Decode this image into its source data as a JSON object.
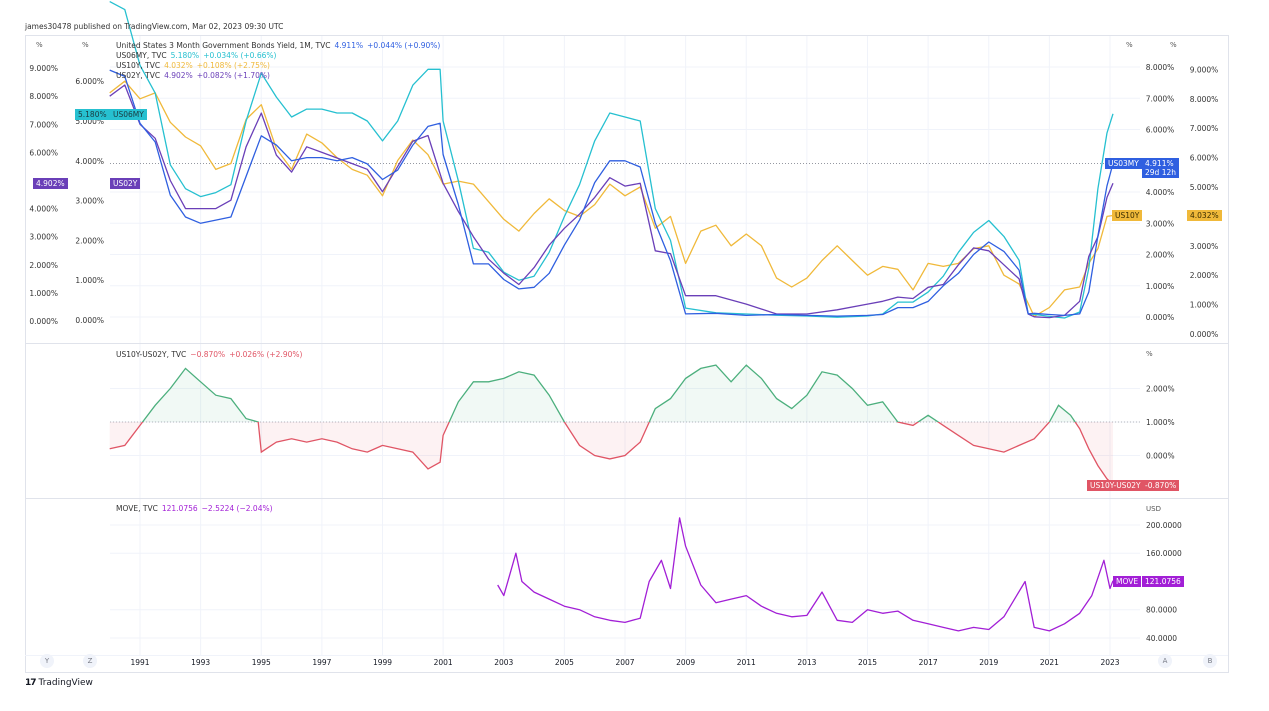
{
  "published": "james30478 published on TradingView.com, Mar 02, 2023 09:30 UTC",
  "brand": "TradingView",
  "colors": {
    "us03my": "#2f5fe0",
    "us06my": "#26c0d0",
    "us10y": "#f0b93a",
    "us02y": "#6a3fb8",
    "spread_up": "#4caf7d",
    "spread_down": "#e05565",
    "move": "#a21fd6",
    "grid": "#f0f3fa"
  },
  "legend": {
    "us03my": {
      "name": "United States 3 Month Government Bonds Yield, 1M, TVC",
      "value": "4.911%",
      "change": "+0.044% (+0.90%)"
    },
    "us06my": {
      "name": "US06MY, TVC",
      "value": "5.180%",
      "change": "+0.034% (+0.66%)"
    },
    "us10y": {
      "name": "US10Y, TVC",
      "value": "4.032%",
      "change": "+0.108% (+2.75%)"
    },
    "us02y": {
      "name": "US02Y, TVC",
      "value": "4.902%",
      "change": "+0.082% (+1.70%)"
    },
    "spread": {
      "name": "US10Y-US02Y, TVC",
      "value": "−0.870%",
      "change": "+0.026% (+2.90%)"
    },
    "move": {
      "name": "MOVE, TVC",
      "value": "121.0756",
      "change": "−2.5224 (−2.04%)"
    }
  },
  "badges": {
    "us06my_value": "5.180%",
    "us06my_name": "US06MY",
    "us02y_value": "4.902%",
    "us02y_name": "US02Y",
    "us03my_name": "US03MY",
    "us03my_value": "4.911%",
    "us03my_countdown": "29d 12h",
    "us10y_name": "US10Y",
    "us10y_value": "4.032%",
    "spread_name": "US10Y-US02Y",
    "spread_value": "-0.870%",
    "move_name": "MOVE",
    "move_value": "121.0756"
  },
  "scale_buttons": {
    "left1": "Y",
    "left2": "Z",
    "right1": "A",
    "right2": "B"
  },
  "chart_data": [
    {
      "type": "line",
      "title": "",
      "x_ticks": [
        "1991",
        "1993",
        "1995",
        "1997",
        "1999",
        "2001",
        "2003",
        "2005",
        "2007",
        "2009",
        "2011",
        "2013",
        "2015",
        "2017",
        "2019",
        "2021",
        "2023"
      ],
      "axes": {
        "left_outer": {
          "unit": "%",
          "ticks": [
            "0.000%",
            "1.000%",
            "2.000%",
            "3.000%",
            "4.000%",
            "6.000%",
            "7.000%",
            "8.000%",
            "9.000%"
          ],
          "ylim": [
            0,
            9
          ],
          "series": "US02Y"
        },
        "left_inner": {
          "unit": "%",
          "ticks": [
            "0.000%",
            "1.000%",
            "2.000%",
            "3.000%",
            "4.000%",
            "5.000%",
            "6.000%"
          ],
          "ylim": [
            0,
            6
          ],
          "series": "US06MY"
        },
        "right_inner": {
          "unit": "%",
          "ticks": [
            "0.000%",
            "1.000%",
            "2.000%",
            "3.000%",
            "4.000%",
            "6.000%",
            "7.000%",
            "8.000%"
          ],
          "ylim": [
            0,
            8
          ],
          "series": "US03MY"
        },
        "right_outer": {
          "unit": "%",
          "ticks": [
            "0.000%",
            "1.000%",
            "2.000%",
            "3.000%",
            "5.000%",
            "6.000%",
            "7.000%",
            "8.000%",
            "9.000%"
          ],
          "ylim": [
            0,
            9
          ],
          "series": "US10Y"
        }
      },
      "series": [
        {
          "name": "US03MY",
          "axis": "right_inner",
          "x": [
            1990,
            1990.5,
            1991,
            1991.5,
            1992,
            1992.5,
            1993,
            1993.5,
            1994,
            1994.5,
            1995,
            1995.5,
            1996,
            1996.5,
            1997,
            1997.5,
            1998,
            1998.5,
            1999,
            1999.5,
            2000,
            2000.5,
            2000.9,
            2001,
            2001.5,
            2002,
            2002.5,
            2003,
            2003.5,
            2004,
            2004.5,
            2005,
            2005.5,
            2006,
            2006.5,
            2007,
            2007.5,
            2008,
            2008.5,
            2009,
            2010,
            2011,
            2012,
            2013,
            2014,
            2015,
            2015.5,
            2016,
            2016.5,
            2017,
            2017.5,
            2018,
            2018.5,
            2019,
            2019.5,
            2020,
            2020.3,
            2020.5,
            2021,
            2021.5,
            2022,
            2022.3,
            2022.6,
            2022.9,
            2023.1
          ],
          "values": [
            7.9,
            7.7,
            6.2,
            5.6,
            3.9,
            3.2,
            3.0,
            3.1,
            3.2,
            4.5,
            5.8,
            5.5,
            5.0,
            5.1,
            5.1,
            5.0,
            5.1,
            4.9,
            4.4,
            4.7,
            5.5,
            6.1,
            6.2,
            5.2,
            3.6,
            1.7,
            1.7,
            1.2,
            0.9,
            0.95,
            1.4,
            2.3,
            3.1,
            4.3,
            5.0,
            5.0,
            4.8,
            3.0,
            1.8,
            0.1,
            0.12,
            0.05,
            0.08,
            0.05,
            0.03,
            0.05,
            0.08,
            0.3,
            0.3,
            0.5,
            1.0,
            1.4,
            2.0,
            2.4,
            2.1,
            1.5,
            0.1,
            0.12,
            0.08,
            0.05,
            0.1,
            0.8,
            2.6,
            4.2,
            4.911
          ]
        },
        {
          "name": "US06MY",
          "axis": "left_inner",
          "x": [
            1990,
            1990.5,
            1991,
            1991.5,
            1992,
            1992.5,
            1993,
            1993.5,
            1994,
            1994.5,
            1995,
            1995.5,
            1996,
            1996.5,
            1997,
            1997.5,
            1998,
            1998.5,
            1999,
            1999.5,
            2000,
            2000.5,
            2000.9,
            2001,
            2001.5,
            2002,
            2002.5,
            2003,
            2003.5,
            2004,
            2004.5,
            2005,
            2005.5,
            2006,
            2006.5,
            2007,
            2007.5,
            2008,
            2008.5,
            2009,
            2010,
            2011,
            2012,
            2013,
            2014,
            2015,
            2015.5,
            2016,
            2016.5,
            2017,
            2017.5,
            2018,
            2018.5,
            2019,
            2019.5,
            2020,
            2020.3,
            2020.5,
            2021,
            2021.5,
            2022,
            2022.3,
            2022.6,
            2022.9,
            2023.1
          ],
          "values": [
            8.0,
            7.8,
            6.4,
            5.7,
            3.9,
            3.3,
            3.1,
            3.2,
            3.4,
            5.0,
            6.2,
            5.6,
            5.1,
            5.3,
            5.3,
            5.2,
            5.2,
            5.0,
            4.5,
            5.0,
            5.9,
            6.3,
            6.3,
            5.0,
            3.5,
            1.8,
            1.7,
            1.2,
            1.0,
            1.1,
            1.7,
            2.6,
            3.4,
            4.5,
            5.2,
            5.1,
            5.0,
            2.8,
            2.0,
            0.3,
            0.18,
            0.15,
            0.12,
            0.1,
            0.07,
            0.1,
            0.15,
            0.45,
            0.45,
            0.7,
            1.1,
            1.7,
            2.2,
            2.5,
            2.1,
            1.5,
            0.15,
            0.14,
            0.09,
            0.05,
            0.2,
            1.3,
            3.3,
            4.7,
            5.18
          ]
        },
        {
          "name": "US10Y",
          "axis": "right_outer",
          "x": [
            1990,
            1990.5,
            1991,
            1991.5,
            1992,
            1992.5,
            1993,
            1993.5,
            1994,
            1994.5,
            1995,
            1995.5,
            1996,
            1996.5,
            1997,
            1997.5,
            1998,
            1998.5,
            1999,
            1999.5,
            2000,
            2000.5,
            2001,
            2001.5,
            2002,
            2002.5,
            2003,
            2003.5,
            2004,
            2004.5,
            2005,
            2005.5,
            2006,
            2006.5,
            2007,
            2007.5,
            2008,
            2008.5,
            2009,
            2009.5,
            2010,
            2010.5,
            2011,
            2011.5,
            2012,
            2012.5,
            2013,
            2013.5,
            2014,
            2014.5,
            2015,
            2015.5,
            2016,
            2016.5,
            2017,
            2017.5,
            2018,
            2018.5,
            2019,
            2019.5,
            2020,
            2020.5,
            2021,
            2021.5,
            2022,
            2022.3,
            2022.6,
            2022.9,
            2023.1
          ],
          "values": [
            8.2,
            8.6,
            8.0,
            8.2,
            7.2,
            6.7,
            6.4,
            5.6,
            5.8,
            7.3,
            7.8,
            6.3,
            5.6,
            6.8,
            6.5,
            6.0,
            5.6,
            5.4,
            4.7,
            5.9,
            6.6,
            6.1,
            5.1,
            5.2,
            5.1,
            4.5,
            3.9,
            3.5,
            4.1,
            4.6,
            4.2,
            4.0,
            4.4,
            5.1,
            4.7,
            5.0,
            3.6,
            4.0,
            2.4,
            3.5,
            3.7,
            3.0,
            3.4,
            3.0,
            1.9,
            1.6,
            1.9,
            2.5,
            3.0,
            2.5,
            2.0,
            2.3,
            2.2,
            1.5,
            2.4,
            2.3,
            2.4,
            2.9,
            3.0,
            2.0,
            1.7,
            0.6,
            0.9,
            1.5,
            1.6,
            2.4,
            2.9,
            4.0,
            4.032
          ]
        },
        {
          "name": "US02Y",
          "axis": "left_outer",
          "x": [
            1990,
            1990.5,
            1991,
            1991.5,
            1992,
            1992.5,
            1993,
            1993.5,
            1994,
            1994.5,
            1995,
            1995.5,
            1996,
            1996.5,
            1997,
            1997.5,
            1998,
            1998.5,
            1999,
            1999.5,
            2000,
            2000.5,
            2001,
            2001.5,
            2002,
            2002.5,
            2003,
            2003.5,
            2004,
            2004.5,
            2005,
            2005.5,
            2006,
            2006.5,
            2007,
            2007.5,
            2008,
            2008.5,
            2009,
            2010,
            2011,
            2012,
            2013,
            2014,
            2015,
            2015.5,
            2016,
            2016.5,
            2017,
            2017.5,
            2018,
            2018.5,
            2019,
            2019.5,
            2020,
            2020.3,
            2020.5,
            2021,
            2021.5,
            2022,
            2022.3,
            2022.6,
            2022.9,
            2023.1
          ],
          "values": [
            8.0,
            8.4,
            7.0,
            6.5,
            5.0,
            4.0,
            4.0,
            4.0,
            4.3,
            6.2,
            7.4,
            5.9,
            5.3,
            6.2,
            6.0,
            5.8,
            5.6,
            5.4,
            4.6,
            5.5,
            6.4,
            6.6,
            4.9,
            3.9,
            3.0,
            2.2,
            1.7,
            1.3,
            1.9,
            2.7,
            3.3,
            3.8,
            4.4,
            5.1,
            4.8,
            4.9,
            2.5,
            2.4,
            0.9,
            0.9,
            0.6,
            0.25,
            0.25,
            0.4,
            0.6,
            0.7,
            0.85,
            0.8,
            1.2,
            1.3,
            2.0,
            2.6,
            2.5,
            2.0,
            1.5,
            0.25,
            0.15,
            0.12,
            0.2,
            0.7,
            2.3,
            3.0,
            4.4,
            4.902
          ]
        }
      ]
    },
    {
      "type": "area",
      "title": "",
      "unit": "%",
      "y_ticks": [
        "0.000%",
        "1.000%",
        "2.000%"
      ],
      "ylim": [
        -1,
        2.8
      ],
      "baseline": 1.0,
      "series": [
        {
          "name": "US10Y-US02Y",
          "x": [
            1990,
            1990.5,
            1991,
            1991.5,
            1992,
            1992.5,
            1993,
            1993.5,
            1994,
            1994.5,
            1994.9,
            1995,
            1995.5,
            1996,
            1996.5,
            1997,
            1997.5,
            1998,
            1998.5,
            1999,
            1999.5,
            2000,
            2000.5,
            2000.9,
            2001,
            2001.5,
            2002,
            2002.5,
            2003,
            2003.5,
            2004,
            2004.5,
            2005,
            2005.5,
            2006,
            2006.5,
            2007,
            2007.5,
            2008,
            2008.5,
            2009,
            2009.5,
            2010,
            2010.5,
            2011,
            2011.5,
            2012,
            2012.5,
            2013,
            2013.5,
            2014,
            2014.5,
            2015,
            2015.5,
            2016,
            2016.5,
            2017,
            2017.5,
            2018,
            2018.5,
            2019,
            2019.5,
            2020,
            2020.5,
            2021,
            2021.3,
            2021.7,
            2022,
            2022.3,
            2022.6,
            2022.9,
            2023.1
          ],
          "values": [
            0.2,
            0.3,
            0.9,
            1.5,
            2.0,
            2.6,
            2.2,
            1.8,
            1.7,
            1.1,
            1.0,
            0.1,
            0.4,
            0.5,
            0.4,
            0.5,
            0.4,
            0.2,
            0.1,
            0.3,
            0.2,
            0.1,
            -0.4,
            -0.2,
            0.6,
            1.6,
            2.2,
            2.2,
            2.3,
            2.5,
            2.4,
            1.8,
            1.0,
            0.3,
            0.0,
            -0.1,
            0.0,
            0.4,
            1.4,
            1.7,
            2.3,
            2.6,
            2.7,
            2.2,
            2.7,
            2.3,
            1.7,
            1.4,
            1.8,
            2.5,
            2.4,
            2.0,
            1.5,
            1.6,
            1.0,
            0.9,
            1.2,
            0.9,
            0.6,
            0.3,
            0.2,
            0.1,
            0.3,
            0.5,
            1.0,
            1.5,
            1.2,
            0.8,
            0.2,
            -0.3,
            -0.7,
            -0.87
          ]
        }
      ]
    },
    {
      "type": "line",
      "title": "",
      "unit": "USD",
      "y_ticks": [
        "40.0000",
        "80.0000",
        "160.0000",
        "200.0000"
      ],
      "ylim": [
        30,
        215
      ],
      "series": [
        {
          "name": "MOVE",
          "x": [
            2002.8,
            2003.0,
            2003.4,
            2003.6,
            2004.0,
            2004.5,
            2005.0,
            2005.5,
            2006.0,
            2006.5,
            2007.0,
            2007.5,
            2007.8,
            2008.2,
            2008.5,
            2008.8,
            2009.0,
            2009.5,
            2010.0,
            2010.5,
            2011.0,
            2011.5,
            2012.0,
            2012.5,
            2013.0,
            2013.5,
            2014.0,
            2014.5,
            2015.0,
            2015.5,
            2016.0,
            2016.5,
            2017.0,
            2017.5,
            2018.0,
            2018.5,
            2019.0,
            2019.5,
            2020.2,
            2020.5,
            2021.0,
            2021.5,
            2022.0,
            2022.4,
            2022.8,
            2023.0,
            2023.1
          ],
          "values": [
            115,
            100,
            160,
            120,
            105,
            95,
            85,
            80,
            70,
            65,
            62,
            68,
            120,
            150,
            110,
            210,
            170,
            115,
            90,
            95,
            100,
            85,
            75,
            70,
            72,
            105,
            65,
            62,
            80,
            75,
            78,
            65,
            60,
            55,
            50,
            55,
            52,
            70,
            120,
            55,
            50,
            60,
            75,
            100,
            150,
            110,
            121.0756
          ]
        }
      ]
    }
  ]
}
